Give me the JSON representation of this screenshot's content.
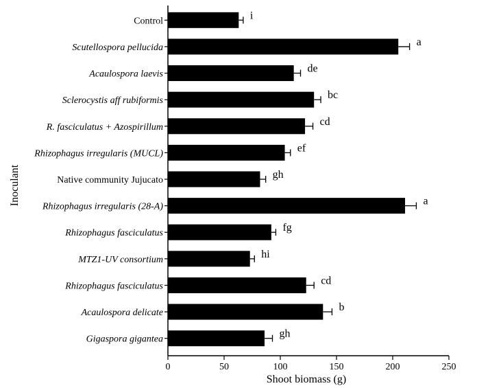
{
  "chart_data": {
    "type": "bar",
    "orientation": "horizontal",
    "xlabel": "Shoot biomass (g)",
    "ylabel": "Inoculant",
    "xlim": [
      0,
      250
    ],
    "x_ticks": [
      0,
      50,
      100,
      150,
      200,
      250
    ],
    "grid": false,
    "categories": [
      {
        "text": "Control",
        "style": "normal"
      },
      {
        "text": "Scutellospora pellucida",
        "style": "italic"
      },
      {
        "text": "Acaulospora laevis",
        "style": "italic"
      },
      {
        "text": "Sclerocystis aff rubiformis",
        "style": "italic"
      },
      {
        "text": "R. fasciculatus + Azospirillum",
        "style": "italic"
      },
      {
        "text": "Rhizophagus irregularis (MUCL)",
        "style": "italic"
      },
      {
        "text": "Native community Jujucato",
        "style": "normal"
      },
      {
        "text": "Rhizophagus irregularis (28-A)",
        "style": "italic"
      },
      {
        "text": "Rhizophagus fasciculatus",
        "style": "italic"
      },
      {
        "text": "MTZ1-UV consortium",
        "style": "italic"
      },
      {
        "text": "Rhizophagus fasciculatus",
        "style": "italic"
      },
      {
        "text": "Acaulospora delicate",
        "style": "italic"
      },
      {
        "text": "Gigaspora gigantea",
        "style": "italic"
      }
    ],
    "values": [
      63,
      205,
      112,
      130,
      122,
      104,
      82,
      211,
      92,
      73,
      123,
      138,
      86
    ],
    "errors": [
      4,
      10,
      6,
      6,
      7,
      5,
      5,
      10,
      4,
      4,
      7,
      8,
      7
    ],
    "significance": [
      "i",
      "a",
      "de",
      "bc",
      "cd",
      "ef",
      "gh",
      "a",
      "fg",
      "hi",
      "cd",
      "b",
      "gh"
    ],
    "bar_color": "#000000"
  }
}
